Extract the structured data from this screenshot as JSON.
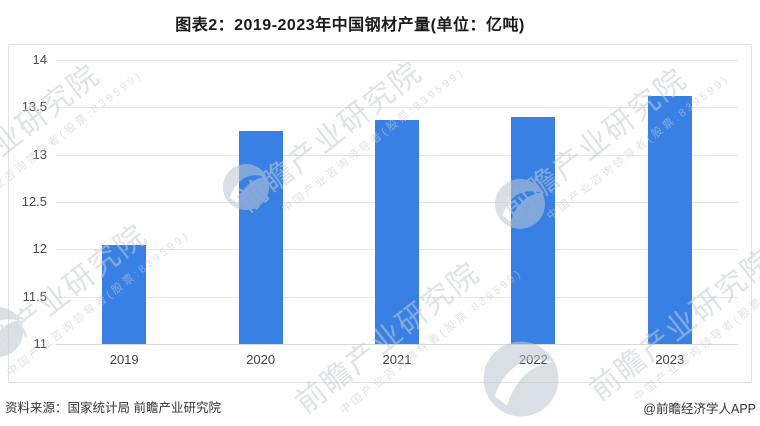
{
  "chart_data": {
    "type": "bar",
    "title": "图表2：2019-2023年中国钢材产量(单位：亿吨)",
    "categories": [
      "2019",
      "2020",
      "2021",
      "2022",
      "2023"
    ],
    "values": [
      12.05,
      13.25,
      13.37,
      13.4,
      13.62
    ],
    "unit": "亿吨",
    "xlabel": "",
    "ylabel": "",
    "ylim": [
      11,
      14
    ],
    "yticks": [
      11,
      11.5,
      12,
      12.5,
      13,
      13.5,
      14
    ],
    "grid": true,
    "legend_position": "none",
    "bar_color": "#3880e4"
  },
  "watermark": {
    "brand": "前瞻产业研究院",
    "tagline": "中国产业咨询领导者(股票:839599)",
    "logo": "qianzhan-logo"
  },
  "footer": {
    "source": "资料来源：国家统计局 前瞻产业研究院",
    "credit": "@前瞻经济学人APP"
  },
  "colors": {
    "bar": "#3880e4",
    "gridline": "#e6e6e6",
    "axis_line": "#d8d8d8",
    "plot_border": "#e3e3e3",
    "watermark": "#c5cbd3",
    "title_text": "#1a1a1a",
    "tick_text": "#4d4d4d",
    "footer_text": "#333333"
  }
}
